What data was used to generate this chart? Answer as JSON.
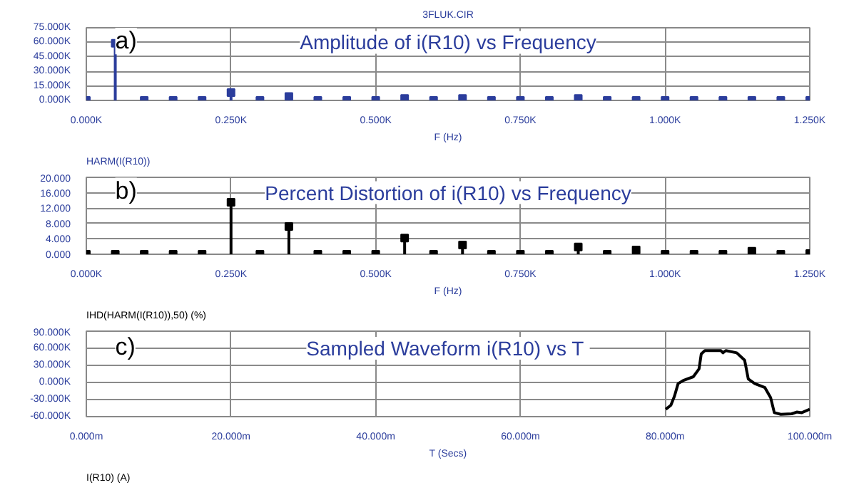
{
  "chart_data": [
    {
      "type": "lollipop",
      "title": "Amplitude of i(R10) vs Frequency",
      "xlabel": "F (Hz)",
      "annotations": [
        "a)",
        "HARM(I(R10))",
        "3FLUK.CIR"
      ],
      "marker": "square",
      "grid": true,
      "x": [
        0,
        50,
        100,
        150,
        200,
        250,
        300,
        350,
        400,
        450,
        500,
        550,
        600,
        650,
        700,
        750,
        800,
        850,
        900,
        950,
        1000,
        1050,
        1100,
        1150,
        1200,
        1250
      ],
      "series": [
        {
          "color": "#2b3d9c",
          "values": [
            0,
            59,
            0,
            0,
            0,
            8,
            0,
            4,
            0,
            0,
            0,
            2,
            0,
            2,
            0,
            0,
            0,
            2,
            0,
            0,
            0,
            0,
            0,
            0,
            0,
            0
          ]
        }
      ],
      "xlim": [
        0,
        1250
      ],
      "xticks": [
        {
          "value": 0,
          "label": "0.000K"
        },
        {
          "value": 250,
          "label": "0.250K"
        },
        {
          "value": 500,
          "label": "0.500K"
        },
        {
          "value": 750,
          "label": "0.750K"
        },
        {
          "value": 1000,
          "label": "1.000K"
        },
        {
          "value": 1250,
          "label": "1.250K"
        }
      ],
      "ylim": [
        0,
        75
      ],
      "yticks": [
        {
          "value": 0,
          "label": "0.000K"
        },
        {
          "value": 15,
          "label": "15.000K"
        },
        {
          "value": 30,
          "label": "30.000K"
        },
        {
          "value": 45,
          "label": "45.000K"
        },
        {
          "value": 60,
          "label": "60.000K"
        },
        {
          "value": 75,
          "label": "75.000K"
        }
      ]
    },
    {
      "type": "lollipop",
      "title": "Percent Distortion of i(R10) vs Frequency",
      "xlabel": "F (Hz)",
      "annotations": [
        "b)",
        "IHD(HARM(I(R10)),50) (%)"
      ],
      "marker": "square",
      "grid": true,
      "x": [
        0,
        50,
        100,
        150,
        200,
        250,
        300,
        350,
        400,
        450,
        500,
        550,
        600,
        650,
        700,
        750,
        800,
        850,
        900,
        950,
        1000,
        1050,
        1100,
        1150,
        1200,
        1250
      ],
      "series": [
        {
          "color": "#000000",
          "values": [
            0,
            0,
            0,
            0,
            0,
            13.5,
            0,
            7.2,
            0,
            0,
            0,
            4.2,
            0,
            2.4,
            0,
            0,
            0,
            1.9,
            0,
            1.1,
            0,
            0,
            0,
            0.8,
            0,
            0.2
          ]
        }
      ],
      "xlim": [
        0,
        1250
      ],
      "xticks": [
        {
          "value": 0,
          "label": "0.000K"
        },
        {
          "value": 250,
          "label": "0.250K"
        },
        {
          "value": 500,
          "label": "0.500K"
        },
        {
          "value": 750,
          "label": "0.750K"
        },
        {
          "value": 1000,
          "label": "1.000K"
        },
        {
          "value": 1250,
          "label": "1.250K"
        }
      ],
      "ylim": [
        0,
        20
      ],
      "yticks": [
        {
          "value": 0,
          "label": "0.000"
        },
        {
          "value": 4,
          "label": "4.000"
        },
        {
          "value": 8,
          "label": "8.000"
        },
        {
          "value": 12,
          "label": "12.000"
        },
        {
          "value": 16,
          "label": "16.000"
        },
        {
          "value": 20,
          "label": "20.000"
        }
      ]
    },
    {
      "type": "line",
      "title": "Sampled Waveform  i(R10) vs T",
      "xlabel": "T (Secs)",
      "annotations": [
        "c)",
        "I(R10) (A)"
      ],
      "marker": "none",
      "line_style": "solid",
      "grid": true,
      "series": [
        {
          "color": "#000000",
          "x": [
            80.1,
            80.8,
            81.3,
            81.8,
            82.6,
            83.9,
            84.7,
            85.0,
            85.5,
            87.7,
            88.0,
            88.4,
            89.9,
            91.0,
            91.5,
            92.4,
            93.8,
            94.6,
            95.1,
            96.0,
            97.5,
            98.2,
            98.9,
            100.0
          ],
          "values": [
            -47,
            -40,
            -24,
            -2,
            4,
            10,
            24,
            50,
            56,
            56,
            52,
            56,
            52,
            39,
            6,
            -2,
            -9,
            -27,
            -53,
            -56,
            -55,
            -52,
            -53,
            -47
          ]
        }
      ],
      "xlim": [
        0,
        100
      ],
      "xticks": [
        {
          "value": 0,
          "label": "0.000m"
        },
        {
          "value": 20,
          "label": "20.000m"
        },
        {
          "value": 40,
          "label": "40.000m"
        },
        {
          "value": 60,
          "label": "60.000m"
        },
        {
          "value": 80,
          "label": "80.000m"
        },
        {
          "value": 100,
          "label": "100.000m"
        }
      ],
      "ylim": [
        -60,
        90
      ],
      "yticks": [
        {
          "value": -60,
          "label": "-60.000K"
        },
        {
          "value": -30,
          "label": "-30.000K"
        },
        {
          "value": 0,
          "label": "0.000K"
        },
        {
          "value": 30,
          "label": "30.000K"
        },
        {
          "value": 60,
          "label": "60.000K"
        },
        {
          "value": 90,
          "label": "90.000K"
        }
      ]
    }
  ]
}
